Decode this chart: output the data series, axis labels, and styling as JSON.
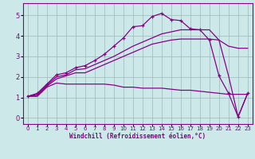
{
  "xlabel": "Windchill (Refroidissement éolien,°C)",
  "bg_color": "#cce8e8",
  "line_color": "#880088",
  "grid_color": "#99bbbb",
  "xlim": [
    -0.5,
    23.5
  ],
  "ylim": [
    -0.3,
    5.6
  ],
  "xticks": [
    0,
    1,
    2,
    3,
    4,
    5,
    6,
    7,
    8,
    9,
    10,
    11,
    12,
    13,
    14,
    15,
    16,
    17,
    18,
    19,
    20,
    21,
    22,
    23
  ],
  "yticks": [
    0,
    1,
    2,
    3,
    4,
    5
  ],
  "line1_x": [
    0,
    1,
    2,
    3,
    4,
    5,
    6,
    7,
    8,
    9,
    10,
    11,
    12,
    13,
    14,
    15,
    16,
    17,
    18,
    19,
    20,
    21,
    22,
    23
  ],
  "line1_y": [
    1.05,
    1.2,
    1.65,
    2.1,
    2.2,
    2.45,
    2.55,
    2.8,
    3.1,
    3.5,
    3.9,
    4.45,
    4.5,
    4.95,
    5.1,
    4.8,
    4.75,
    4.35,
    4.3,
    3.8,
    2.05,
    1.2,
    0.05,
    1.2
  ],
  "line2_x": [
    0,
    1,
    2,
    3,
    4,
    5,
    6,
    7,
    8,
    9,
    10,
    11,
    12,
    13,
    14,
    15,
    16,
    17,
    18,
    19,
    20,
    21,
    22,
    23
  ],
  "line2_y": [
    1.05,
    1.15,
    1.6,
    2.0,
    2.1,
    2.35,
    2.4,
    2.6,
    2.8,
    3.0,
    3.25,
    3.5,
    3.7,
    3.9,
    4.1,
    4.2,
    4.3,
    4.3,
    4.3,
    4.3,
    3.8,
    2.05,
    0.05,
    1.2
  ],
  "line3_x": [
    0,
    1,
    2,
    3,
    4,
    5,
    6,
    7,
    8,
    9,
    10,
    11,
    12,
    13,
    14,
    15,
    16,
    17,
    18,
    19,
    20,
    21,
    22,
    23
  ],
  "line3_y": [
    1.05,
    1.1,
    1.55,
    1.9,
    2.05,
    2.2,
    2.2,
    2.4,
    2.6,
    2.8,
    3.0,
    3.2,
    3.4,
    3.6,
    3.7,
    3.8,
    3.85,
    3.85,
    3.85,
    3.85,
    3.8,
    3.5,
    3.4,
    3.4
  ],
  "line4_x": [
    0,
    1,
    2,
    3,
    4,
    5,
    6,
    7,
    8,
    9,
    10,
    11,
    12,
    13,
    14,
    15,
    16,
    17,
    18,
    19,
    20,
    21,
    22,
    23
  ],
  "line4_y": [
    1.05,
    1.05,
    1.5,
    1.7,
    1.65,
    1.65,
    1.65,
    1.65,
    1.65,
    1.6,
    1.5,
    1.5,
    1.45,
    1.45,
    1.45,
    1.4,
    1.35,
    1.35,
    1.3,
    1.25,
    1.2,
    1.15,
    1.15,
    1.15
  ]
}
